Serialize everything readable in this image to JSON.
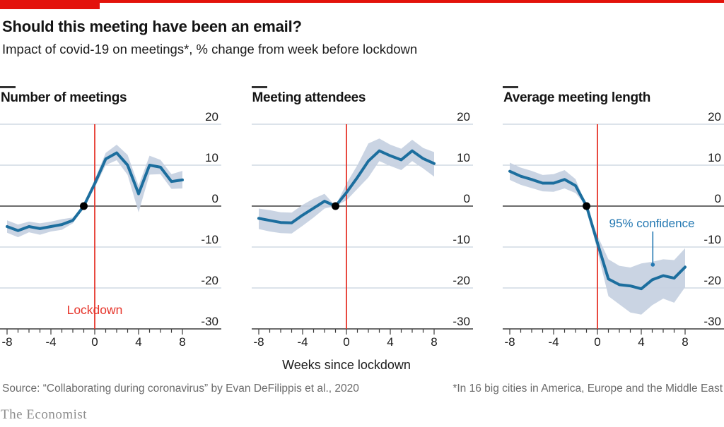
{
  "page": {
    "title": "Should this meeting have been an email?",
    "subtitle": "Impact of covid-19 on meetings*, % change from week before lockdown",
    "x_axis_title": "Weeks since lockdown",
    "source": "Source: “Collaborating during coronavirus” by Evan DeFilippis et al., 2020",
    "footnote": "*In 16 big cities in America, Europe and the Middle East",
    "brand": "The Economist"
  },
  "colors": {
    "accent_red": "#e3120b",
    "event_red": "#e6352b",
    "line_blue": "#1c6e9e",
    "band_blue": "#c7d2e2",
    "grid": "#b9c7d4",
    "axis_dark": "#3b3b3b",
    "text_dark": "#141414",
    "muted": "#6b6b6b",
    "brand": "#8e8e8e",
    "annotation_blue": "#2478b2",
    "heading_tick": "#333333"
  },
  "chart_data": [
    {
      "type": "line",
      "title": "Number of meetings",
      "x": [
        -8,
        -7,
        -6,
        -5,
        -4,
        -3,
        -2,
        -1,
        0,
        1,
        2,
        3,
        4,
        5,
        6,
        7,
        8
      ],
      "line": [
        -5,
        -6,
        -5,
        -5.5,
        -5,
        -4.5,
        -3.5,
        0,
        5.5,
        11.5,
        13,
        10,
        3,
        10,
        9.5,
        6,
        6.4
      ],
      "upper_95": [
        -3.5,
        -4.5,
        -3.8,
        -4.2,
        -3.8,
        -3.2,
        -2.8,
        0,
        6.5,
        13,
        15,
        12.5,
        5,
        12.3,
        11.3,
        7.8,
        8.6
      ],
      "lower_95": [
        -6.5,
        -7.6,
        -6.4,
        -7,
        -6.2,
        -5.8,
        -4.2,
        0,
        4.5,
        10,
        11.2,
        7.6,
        -1.5,
        7.7,
        7.8,
        4.2,
        4.3
      ],
      "ylim": [
        -30,
        20
      ],
      "yticks": [
        20,
        10,
        0,
        -10,
        -20,
        -30
      ],
      "xticks": [
        -8,
        -4,
        0,
        4,
        8
      ],
      "grid": true,
      "event_line_x": 0,
      "marker": {
        "x": -1,
        "y": 0
      },
      "annotation": {
        "text": "Lockdown"
      }
    },
    {
      "type": "line",
      "title": "Meeting attendees",
      "x": [
        -8,
        -7,
        -6,
        -5,
        -4,
        -3,
        -2,
        -1,
        0,
        1,
        2,
        3,
        4,
        5,
        6,
        7,
        8
      ],
      "line": [
        -3,
        -3.5,
        -4,
        -4.1,
        -2.2,
        -0.5,
        1.2,
        0,
        3.3,
        7,
        11,
        13.5,
        12.3,
        11.3,
        13.5,
        11.6,
        10.4
      ],
      "upper_95": [
        -0.6,
        -1,
        -1.5,
        -1.6,
        0.3,
        1.8,
        3,
        0,
        5.5,
        10,
        15.3,
        16.5,
        15,
        14,
        16.2,
        14.2,
        13.2
      ],
      "lower_95": [
        -5.6,
        -6.2,
        -6.6,
        -6.7,
        -4.8,
        -2.8,
        -0.6,
        0,
        1.4,
        4.2,
        7,
        11,
        9.8,
        8.8,
        11,
        9.2,
        7.2
      ],
      "ylim": [
        -30,
        20
      ],
      "yticks": [
        20,
        10,
        0,
        -10,
        -20,
        -30
      ],
      "xticks": [
        -8,
        -4,
        0,
        4,
        8
      ],
      "grid": true,
      "event_line_x": 0,
      "marker": {
        "x": -1,
        "y": 0
      },
      "annotation": null
    },
    {
      "type": "line",
      "title": "Average meeting length",
      "x": [
        -8,
        -7,
        -6,
        -5,
        -4,
        -3,
        -2,
        -1,
        0,
        1,
        2,
        3,
        4,
        5,
        6,
        7,
        8
      ],
      "line": [
        8.5,
        7.3,
        6.5,
        5.6,
        5.6,
        6.5,
        5,
        0,
        -9,
        -17.8,
        -19.2,
        -19.5,
        -20.2,
        -18,
        -17,
        -17.6,
        -14.9
      ],
      "upper_95": [
        10.6,
        9.4,
        8.6,
        7.6,
        7.8,
        8.8,
        6.6,
        0,
        -7.2,
        -13,
        -14.6,
        -15,
        -14,
        -13.6,
        -13,
        -13.2,
        -10.3
      ],
      "lower_95": [
        6.4,
        5.2,
        4.4,
        3.6,
        3.5,
        4.3,
        3.2,
        0,
        -11,
        -22,
        -24,
        -26,
        -26.5,
        -24.2,
        -22.6,
        -23.6,
        -19.8
      ],
      "ylim": [
        -30,
        20
      ],
      "yticks": [
        20,
        10,
        0,
        -10,
        -20,
        -30
      ],
      "xticks": [
        -8,
        -4,
        0,
        4,
        8
      ],
      "grid": true,
      "event_line_x": 0,
      "marker": {
        "x": -1,
        "y": 0
      },
      "annotation": {
        "text": "95% confidence"
      }
    }
  ]
}
